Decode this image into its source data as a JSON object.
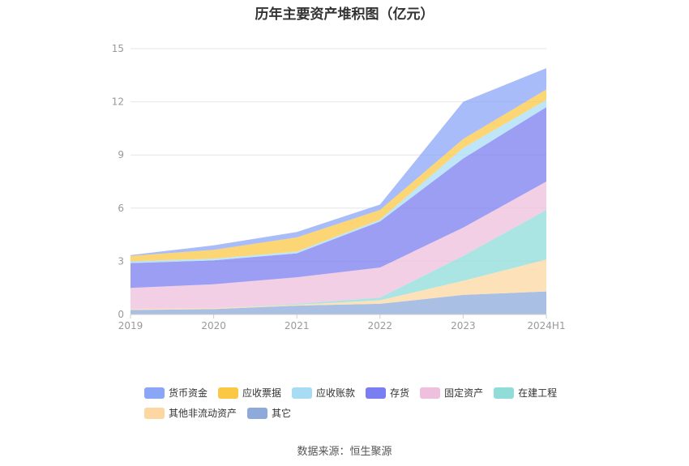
{
  "header": {
    "title": "历年主要资产堆积图（亿元）"
  },
  "footer": {
    "source": "数据来源：恒生聚源"
  },
  "chart_data": {
    "type": "area",
    "stacked": true,
    "title": "历年主要资产堆积图（亿元）",
    "xlabel": "",
    "ylabel": "",
    "categories": [
      "2019",
      "2020",
      "2021",
      "2022",
      "2023",
      "2024H1"
    ],
    "ylim": [
      0,
      15
    ],
    "yticks": [
      "0",
      "3",
      "6",
      "9",
      "12",
      "15"
    ],
    "grid": true,
    "legend_position": "bottom",
    "series": [
      {
        "name": "其它",
        "color": "#8eaadb",
        "values": [
          0.25,
          0.3,
          0.5,
          0.6,
          1.1,
          1.3
        ]
      },
      {
        "name": "其他非流动资产",
        "color": "#fcd7a1",
        "values": [
          0.05,
          0.05,
          0.05,
          0.2,
          0.8,
          1.8
        ]
      },
      {
        "name": "在建工程",
        "color": "#8fdcd9",
        "values": [
          0.0,
          0.0,
          0.05,
          0.15,
          1.4,
          2.8
        ]
      },
      {
        "name": "固定资产",
        "color": "#efbfde",
        "values": [
          1.2,
          1.35,
          1.5,
          1.7,
          1.6,
          1.6
        ]
      },
      {
        "name": "存货",
        "color": "#7b7ef0",
        "values": [
          1.4,
          1.35,
          1.35,
          2.6,
          3.9,
          4.2
        ]
      },
      {
        "name": "应收账款",
        "color": "#a8dcf5",
        "values": [
          0.1,
          0.1,
          0.1,
          0.1,
          0.6,
          0.4
        ]
      },
      {
        "name": "应收票据",
        "color": "#fbc846",
        "values": [
          0.3,
          0.5,
          0.8,
          0.55,
          0.5,
          0.6
        ]
      },
      {
        "name": "货币资金",
        "color": "#89a6f7",
        "values": [
          0.05,
          0.25,
          0.3,
          0.3,
          2.1,
          1.2
        ]
      }
    ],
    "legend_order": [
      "货币资金",
      "应收票据",
      "应收账款",
      "存货",
      "固定资产",
      "在建工程",
      "其他非流动资产",
      "其它"
    ]
  }
}
